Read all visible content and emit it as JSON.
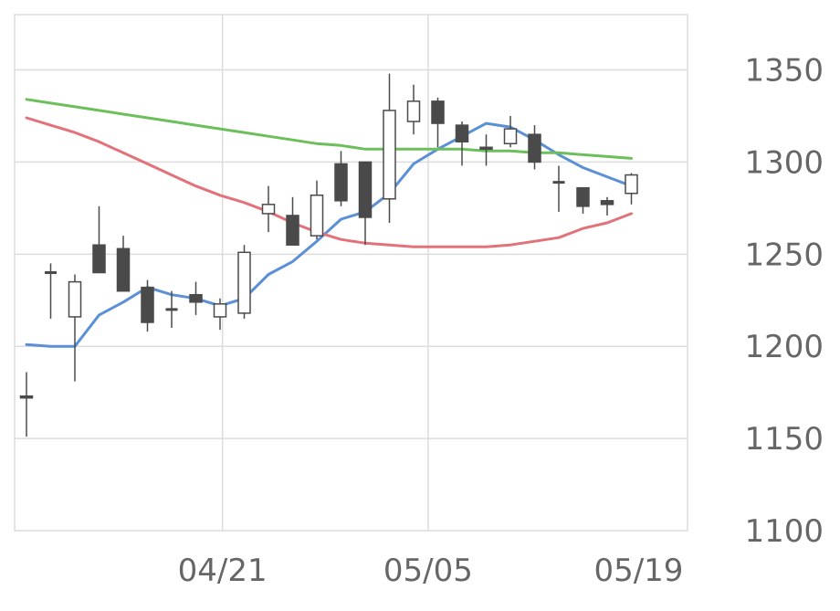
{
  "chart_data": {
    "type": "candlestick",
    "title": "",
    "xlabel": "",
    "ylabel": "",
    "ylim": [
      1100,
      1380
    ],
    "y_ticks": [
      1350,
      1300,
      1250,
      1200,
      1150,
      1100
    ],
    "y_tick_labels": [
      "1350",
      "1300",
      "1250",
      "1200",
      "1150",
      "1100"
    ],
    "x_tick_labels": [
      {
        "label": "04/21",
        "index": 8.1
      },
      {
        "label": "05/05",
        "index": 16.6
      },
      {
        "label": "05/19",
        "index": 25.3
      }
    ],
    "grid": true,
    "candles": [
      {
        "o": 1173,
        "h": 1186,
        "l": 1151,
        "c": 1172
      },
      {
        "o": 1240,
        "h": 1245,
        "l": 1215,
        "c": 1240
      },
      {
        "o": 1216,
        "h": 1239,
        "l": 1181,
        "c": 1235
      },
      {
        "o": 1255,
        "h": 1276,
        "l": 1240,
        "c": 1240
      },
      {
        "o": 1253,
        "h": 1260,
        "l": 1230,
        "c": 1230
      },
      {
        "o": 1232,
        "h": 1236,
        "l": 1208,
        "c": 1213
      },
      {
        "o": 1220,
        "h": 1230,
        "l": 1210,
        "c": 1220
      },
      {
        "o": 1228,
        "h": 1235,
        "l": 1217,
        "c": 1224
      },
      {
        "o": 1216,
        "h": 1226,
        "l": 1209,
        "c": 1223
      },
      {
        "o": 1218,
        "h": 1255,
        "l": 1215,
        "c": 1251
      },
      {
        "o": 1272,
        "h": 1287,
        "l": 1262,
        "c": 1277
      },
      {
        "o": 1271,
        "h": 1281,
        "l": 1255,
        "c": 1255
      },
      {
        "o": 1260,
        "h": 1290,
        "l": 1258,
        "c": 1282
      },
      {
        "o": 1299,
        "h": 1306,
        "l": 1276,
        "c": 1279
      },
      {
        "o": 1300,
        "h": 1300,
        "l": 1255,
        "c": 1270
      },
      {
        "o": 1280,
        "h": 1348,
        "l": 1267,
        "c": 1328
      },
      {
        "o": 1322,
        "h": 1342,
        "l": 1315,
        "c": 1333
      },
      {
        "o": 1333,
        "h": 1335,
        "l": 1308,
        "c": 1321
      },
      {
        "o": 1320,
        "h": 1322,
        "l": 1298,
        "c": 1311
      },
      {
        "o": 1308,
        "h": 1315,
        "l": 1298,
        "c": 1307
      },
      {
        "o": 1310,
        "h": 1325,
        "l": 1308,
        "c": 1318
      },
      {
        "o": 1315,
        "h": 1320,
        "l": 1296,
        "c": 1300
      },
      {
        "o": 1289,
        "h": 1298,
        "l": 1273,
        "c": 1289
      },
      {
        "o": 1286,
        "h": 1286,
        "l": 1272,
        "c": 1276
      },
      {
        "o": 1279,
        "h": 1281,
        "l": 1271,
        "c": 1277
      },
      {
        "o": 1283,
        "h": 1294,
        "l": 1277,
        "c": 1293
      }
    ],
    "series": [
      {
        "color": "#5b8fd6",
        "values": [
          1201,
          1200,
          1200,
          1217,
          1224,
          1232,
          1228,
          1226,
          1222,
          1226,
          1239,
          1246,
          1257,
          1269,
          1273,
          1283,
          1299,
          1307,
          1314,
          1321,
          1319,
          1312,
          1304,
          1297,
          1292,
          1287
        ]
      },
      {
        "color": "#e2727a",
        "values": [
          1324,
          1320,
          1316,
          1311,
          1305,
          1299,
          1293,
          1287,
          1282,
          1278,
          1273,
          1267,
          1262,
          1258,
          1256,
          1255,
          1254,
          1254,
          1254,
          1254,
          1255,
          1257,
          1259,
          1264,
          1267,
          1272
        ]
      },
      {
        "color": "#6cbf5a",
        "values": [
          1334,
          1332,
          1330,
          1328,
          1326,
          1324,
          1322,
          1320,
          1318,
          1316,
          1314,
          1312,
          1310,
          1309,
          1307,
          1307,
          1307,
          1307,
          1307,
          1306,
          1306,
          1305,
          1305,
          1304,
          1303,
          1302
        ]
      }
    ],
    "colors": {
      "up_body": "#ffffff",
      "down_body": "#4a4a4a",
      "candle_outline": "#4a4a4a",
      "grid": "#dcdcdc",
      "axis_text": "#666666"
    }
  }
}
